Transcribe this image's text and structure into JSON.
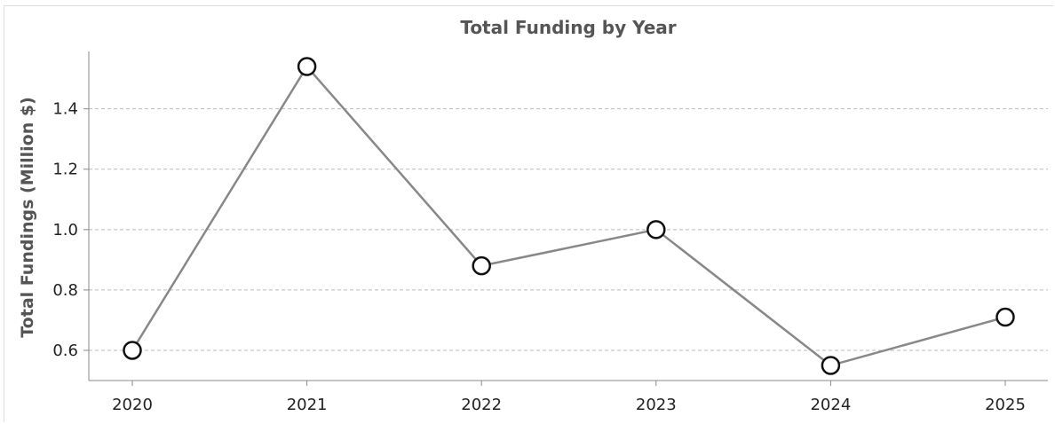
{
  "chart_data": {
    "type": "line",
    "title": "Total Funding by Year",
    "xlabel": "",
    "ylabel": "Total Fundings (Million $)",
    "categories": [
      "2020",
      "2021",
      "2022",
      "2023",
      "2024",
      "2025"
    ],
    "series": [
      {
        "values": [
          0.6,
          1.54,
          0.88,
          1.0,
          0.55,
          0.71
        ]
      }
    ],
    "ylim": [
      0.5,
      1.59
    ],
    "yticks": [
      0.6,
      0.8,
      1.0,
      1.2,
      1.4
    ],
    "ytick_labels": [
      "0.6",
      "0.8",
      "1.0",
      "1.2",
      "1.4"
    ],
    "grid": "horizontal-dashed",
    "colors": {
      "line": "#888888",
      "marker_fill": "#ffffff",
      "marker_edge": "#111111",
      "grid": "#bbbbbb",
      "axis": "#888888",
      "title": "#555555"
    }
  }
}
